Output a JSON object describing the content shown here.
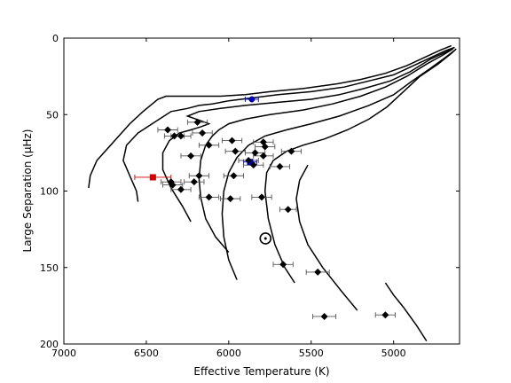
{
  "chart_data": {
    "type": "scatter",
    "xlabel": "Effective Temperature (K)",
    "ylabel": "Large Separation (μHz)",
    "xlim": [
      7000,
      4600
    ],
    "ylim": [
      200,
      0
    ],
    "x_ticks": [
      {
        "value": 7000,
        "label": "7000"
      },
      {
        "value": 6500,
        "label": "6500"
      },
      {
        "value": 6000,
        "label": "6000"
      },
      {
        "value": 5500,
        "label": "5500"
      },
      {
        "value": 5000,
        "label": "5000"
      }
    ],
    "y_ticks": [
      {
        "value": 0,
        "label": "0"
      },
      {
        "value": 50,
        "label": "50"
      },
      {
        "value": 100,
        "label": "100"
      },
      {
        "value": 150,
        "label": "150"
      },
      {
        "value": 200,
        "label": "200"
      }
    ],
    "tracks": [
      [
        [
          6850,
          98
        ],
        [
          6840,
          90
        ],
        [
          6800,
          80
        ],
        [
          6700,
          68
        ],
        [
          6600,
          56
        ],
        [
          6520,
          48
        ],
        [
          6430,
          40
        ],
        [
          6380,
          38
        ],
        [
          6300,
          38
        ],
        [
          6200,
          38
        ],
        [
          6050,
          38
        ],
        [
          5900,
          37
        ],
        [
          5750,
          35
        ],
        [
          5550,
          33
        ],
        [
          5350,
          30
        ],
        [
          5200,
          27
        ],
        [
          5050,
          23
        ],
        [
          4920,
          18
        ],
        [
          4800,
          12
        ],
        [
          4720,
          8
        ],
        [
          4650,
          5
        ]
      ],
      [
        [
          6550,
          107
        ],
        [
          6560,
          100
        ],
        [
          6600,
          90
        ],
        [
          6640,
          80
        ],
        [
          6620,
          70
        ],
        [
          6550,
          62
        ],
        [
          6450,
          55
        ],
        [
          6350,
          48
        ],
        [
          6250,
          46
        ],
        [
          6180,
          44
        ],
        [
          6100,
          43
        ],
        [
          6000,
          41
        ],
        [
          5850,
          39
        ],
        [
          5700,
          37
        ],
        [
          5500,
          35
        ],
        [
          5300,
          32
        ],
        [
          5150,
          28
        ],
        [
          5000,
          24
        ],
        [
          4880,
          18
        ],
        [
          4760,
          12
        ],
        [
          4680,
          8
        ],
        [
          4630,
          6
        ]
      ],
      [
        [
          6230,
          120
        ],
        [
          6280,
          110
        ],
        [
          6350,
          98
        ],
        [
          6400,
          86
        ],
        [
          6400,
          75
        ],
        [
          6360,
          67
        ],
        [
          6300,
          62
        ],
        [
          6230,
          60
        ],
        [
          6170,
          58
        ],
        [
          6120,
          56
        ],
        [
          6170,
          54
        ],
        [
          6250,
          51
        ],
        [
          6180,
          48
        ],
        [
          6050,
          46
        ],
        [
          5900,
          44
        ],
        [
          5700,
          42
        ],
        [
          5500,
          40
        ],
        [
          5330,
          37
        ],
        [
          5180,
          33
        ],
        [
          5020,
          28
        ],
        [
          4900,
          22
        ],
        [
          4780,
          14
        ],
        [
          4680,
          9
        ],
        [
          4630,
          6
        ]
      ],
      [
        [
          6000,
          140
        ],
        [
          6080,
          130
        ],
        [
          6140,
          118
        ],
        [
          6170,
          104
        ],
        [
          6180,
          92
        ],
        [
          6170,
          80
        ],
        [
          6140,
          70
        ],
        [
          6100,
          64
        ],
        [
          6060,
          60
        ],
        [
          6000,
          56
        ],
        [
          5900,
          53
        ],
        [
          5750,
          50
        ],
        [
          5550,
          47
        ],
        [
          5370,
          43
        ],
        [
          5200,
          38
        ],
        [
          5050,
          32
        ],
        [
          4920,
          25
        ],
        [
          4800,
          17
        ],
        [
          4700,
          11
        ],
        [
          4640,
          7
        ]
      ],
      [
        [
          5950,
          158
        ],
        [
          6000,
          145
        ],
        [
          6030,
          130
        ],
        [
          6040,
          115
        ],
        [
          6030,
          100
        ],
        [
          6000,
          88
        ],
        [
          5950,
          78
        ],
        [
          5880,
          70
        ],
        [
          5780,
          64
        ],
        [
          5650,
          60
        ],
        [
          5500,
          56
        ],
        [
          5330,
          51
        ],
        [
          5150,
          44
        ],
        [
          5000,
          37
        ],
        [
          4900,
          29
        ],
        [
          4780,
          20
        ],
        [
          4690,
          13
        ],
        [
          4630,
          8
        ]
      ],
      [
        [
          5600,
          160
        ],
        [
          5660,
          150
        ],
        [
          5720,
          135
        ],
        [
          5760,
          118
        ],
        [
          5780,
          100
        ],
        [
          5770,
          88
        ],
        [
          5730,
          80
        ],
        [
          5650,
          74
        ],
        [
          5550,
          70
        ],
        [
          5420,
          66
        ],
        [
          5280,
          60
        ],
        [
          5150,
          53
        ],
        [
          5040,
          45
        ],
        [
          4950,
          36
        ],
        [
          4840,
          25
        ],
        [
          4730,
          17
        ],
        [
          4650,
          10
        ],
        [
          4620,
          7
        ]
      ],
      [
        [
          5220,
          178
        ],
        [
          5320,
          165
        ],
        [
          5430,
          150
        ],
        [
          5520,
          135
        ],
        [
          5570,
          120
        ],
        [
          5590,
          105
        ],
        [
          5570,
          93
        ],
        [
          5520,
          83
        ]
      ],
      [
        [
          4800,
          198
        ],
        [
          4860,
          188
        ],
        [
          4940,
          176
        ],
        [
          5000,
          168
        ],
        [
          5050,
          160
        ]
      ]
    ],
    "points": [
      {
        "x": 5860,
        "y": 40,
        "xerr": 40,
        "color": "#0000cc",
        "marker": "circle"
      },
      {
        "x": 6460,
        "y": 91,
        "xerr": 110,
        "color": "#cc0000",
        "marker": "square"
      },
      {
        "x": 5870,
        "y": 81,
        "xerr": 40,
        "color": "#0000cc",
        "marker": "square"
      },
      {
        "x": 6190,
        "y": 55,
        "xerr": 60,
        "color": "#000000",
        "marker": "diamond"
      },
      {
        "x": 6370,
        "y": 60,
        "xerr": 60,
        "color": "#000000",
        "marker": "diamond"
      },
      {
        "x": 6330,
        "y": 64,
        "xerr": 60,
        "color": "#000000",
        "marker": "diamond"
      },
      {
        "x": 6290,
        "y": 64,
        "xerr": 60,
        "color": "#000000",
        "marker": "diamond"
      },
      {
        "x": 6160,
        "y": 62,
        "xerr": 60,
        "color": "#000000",
        "marker": "diamond"
      },
      {
        "x": 5980,
        "y": 67,
        "xerr": 60,
        "color": "#000000",
        "marker": "diamond"
      },
      {
        "x": 6120,
        "y": 70,
        "xerr": 60,
        "color": "#000000",
        "marker": "diamond"
      },
      {
        "x": 5790,
        "y": 68,
        "xerr": 60,
        "color": "#000000",
        "marker": "diamond"
      },
      {
        "x": 5780,
        "y": 71,
        "xerr": 60,
        "color": "#000000",
        "marker": "diamond"
      },
      {
        "x": 5960,
        "y": 74,
        "xerr": 60,
        "color": "#000000",
        "marker": "diamond"
      },
      {
        "x": 5840,
        "y": 75,
        "xerr": 60,
        "color": "#000000",
        "marker": "diamond"
      },
      {
        "x": 5790,
        "y": 77,
        "xerr": 60,
        "color": "#000000",
        "marker": "diamond"
      },
      {
        "x": 5620,
        "y": 74,
        "xerr": 60,
        "color": "#000000",
        "marker": "diamond"
      },
      {
        "x": 6230,
        "y": 77,
        "xerr": 60,
        "color": "#000000",
        "marker": "diamond"
      },
      {
        "x": 5880,
        "y": 80,
        "xerr": 60,
        "color": "#000000",
        "marker": "diamond"
      },
      {
        "x": 5850,
        "y": 83,
        "xerr": 60,
        "color": "#000000",
        "marker": "diamond"
      },
      {
        "x": 5690,
        "y": 84,
        "xerr": 60,
        "color": "#000000",
        "marker": "diamond"
      },
      {
        "x": 6180,
        "y": 90,
        "xerr": 60,
        "color": "#000000",
        "marker": "diamond"
      },
      {
        "x": 5970,
        "y": 90,
        "xerr": 60,
        "color": "#000000",
        "marker": "diamond"
      },
      {
        "x": 6350,
        "y": 94,
        "xerr": 60,
        "color": "#000000",
        "marker": "diamond"
      },
      {
        "x": 6210,
        "y": 94,
        "xerr": 60,
        "color": "#000000",
        "marker": "diamond"
      },
      {
        "x": 6340,
        "y": 96,
        "xerr": 60,
        "color": "#000000",
        "marker": "diamond"
      },
      {
        "x": 6290,
        "y": 99,
        "xerr": 60,
        "color": "#000000",
        "marker": "diamond"
      },
      {
        "x": 6120,
        "y": 104,
        "xerr": 60,
        "color": "#000000",
        "marker": "diamond"
      },
      {
        "x": 5990,
        "y": 105,
        "xerr": 60,
        "color": "#000000",
        "marker": "diamond"
      },
      {
        "x": 5800,
        "y": 104,
        "xerr": 60,
        "color": "#000000",
        "marker": "diamond"
      },
      {
        "x": 5640,
        "y": 112,
        "xerr": 50,
        "color": "#000000",
        "marker": "diamond"
      },
      {
        "x": 5670,
        "y": 148,
        "xerr": 60,
        "color": "#000000",
        "marker": "diamond"
      },
      {
        "x": 5460,
        "y": 153,
        "xerr": 70,
        "color": "#000000",
        "marker": "diamond"
      },
      {
        "x": 5420,
        "y": 182,
        "xerr": 70,
        "color": "#000000",
        "marker": "diamond"
      },
      {
        "x": 5050,
        "y": 181,
        "xerr": 60,
        "color": "#000000",
        "marker": "diamond"
      }
    ],
    "sun": {
      "x": 5777,
      "y": 131,
      "marker": "sun-symbol"
    }
  }
}
